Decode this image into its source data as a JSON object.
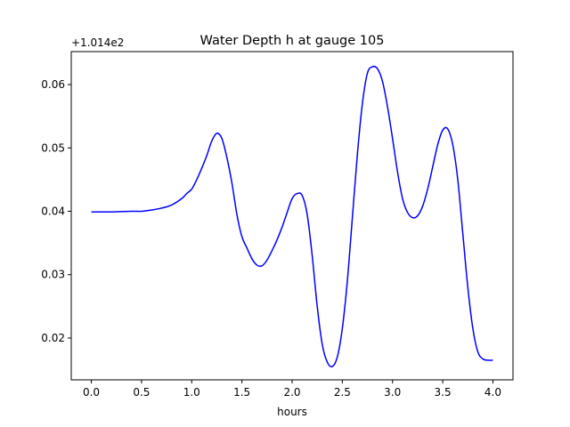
{
  "chart_data": {
    "type": "line",
    "title": "Water Depth h at gauge 105",
    "xlabel": "hours",
    "ylabel": "",
    "y_offset_label": "+1.014e2",
    "xlim": [
      -0.2,
      4.2
    ],
    "ylim": [
      0.0134,
      0.0652
    ],
    "x_ticks": [
      0.0,
      0.5,
      1.0,
      1.5,
      2.0,
      2.5,
      3.0,
      3.5,
      4.0
    ],
    "x_tick_labels": [
      "0.0",
      "0.5",
      "1.0",
      "1.5",
      "2.0",
      "2.5",
      "3.0",
      "3.5",
      "4.0"
    ],
    "y_ticks": [
      0.02,
      0.03,
      0.04,
      0.05,
      0.06
    ],
    "y_tick_labels": [
      "0.02",
      "0.03",
      "0.04",
      "0.05",
      "0.06"
    ],
    "grid": false,
    "series": [
      {
        "color": "#0000ff",
        "x": [
          0.0,
          0.2,
          0.4,
          0.5,
          0.6,
          0.7,
          0.8,
          0.9,
          0.95,
          1.0,
          1.05,
          1.1,
          1.15,
          1.2,
          1.25,
          1.3,
          1.35,
          1.4,
          1.45,
          1.5,
          1.55,
          1.6,
          1.65,
          1.7,
          1.75,
          1.8,
          1.85,
          1.9,
          1.95,
          2.0,
          2.05,
          2.1,
          2.15,
          2.2,
          2.25,
          2.3,
          2.35,
          2.4,
          2.45,
          2.5,
          2.55,
          2.6,
          2.65,
          2.7,
          2.75,
          2.8,
          2.85,
          2.9,
          2.95,
          3.0,
          3.05,
          3.1,
          3.15,
          3.2,
          3.25,
          3.3,
          3.35,
          3.4,
          3.45,
          3.5,
          3.55,
          3.6,
          3.65,
          3.7,
          3.75,
          3.8,
          3.85,
          3.9,
          3.95,
          4.0
        ],
        "y": [
          0.0399,
          0.0399,
          0.04,
          0.04,
          0.0402,
          0.0405,
          0.041,
          0.042,
          0.0428,
          0.0435,
          0.045,
          0.0468,
          0.0488,
          0.0511,
          0.0523,
          0.0515,
          0.0485,
          0.0445,
          0.0395,
          0.036,
          0.0342,
          0.0325,
          0.0315,
          0.0314,
          0.0323,
          0.0338,
          0.0355,
          0.0375,
          0.0398,
          0.042,
          0.0428,
          0.0425,
          0.0395,
          0.033,
          0.025,
          0.019,
          0.0162,
          0.0155,
          0.017,
          0.0215,
          0.029,
          0.039,
          0.049,
          0.057,
          0.0618,
          0.0628,
          0.0625,
          0.0605,
          0.0565,
          0.0515,
          0.0462,
          0.042,
          0.0398,
          0.039,
          0.0393,
          0.0408,
          0.0435,
          0.047,
          0.0505,
          0.0528,
          0.053,
          0.0505,
          0.045,
          0.0365,
          0.028,
          0.0215,
          0.0178,
          0.0167,
          0.0165,
          0.0165
        ]
      }
    ]
  }
}
